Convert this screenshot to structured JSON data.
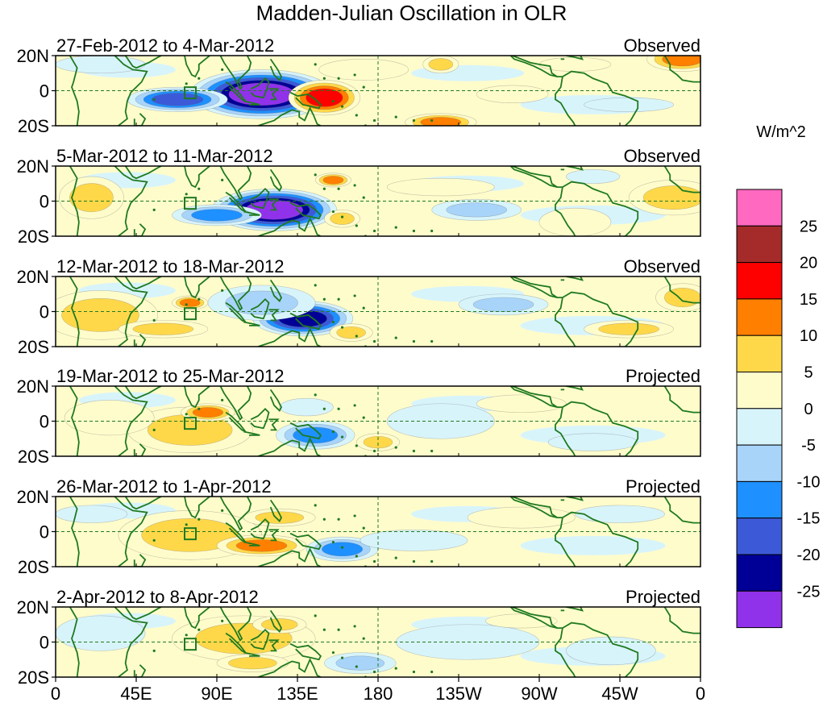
{
  "chart_data": {
    "type": "heatmap",
    "title": "Madden-Julian Oscillation in OLR",
    "units": "W/m^2",
    "lat_ticks": [
      "20N",
      "0",
      "20S"
    ],
    "lon_ticks": [
      "0",
      "45E",
      "90E",
      "135E",
      "180",
      "135W",
      "90W",
      "45W",
      "0"
    ],
    "lon_values": [
      0,
      45,
      90,
      135,
      180,
      225,
      270,
      315,
      360
    ],
    "lat_range": [
      -20,
      20
    ],
    "colorbar": {
      "labels": [
        "25",
        "20",
        "15",
        "10",
        "5",
        "0",
        "-5",
        "-10",
        "-15",
        "-20",
        "-25"
      ],
      "levels": [
        25,
        20,
        15,
        10,
        5,
        0,
        -5,
        -10,
        -15,
        -20,
        -25
      ],
      "colors": [
        "#ff69c0",
        "#a52a2a",
        "#ff0000",
        "#ff7f00",
        "#ffd84a",
        "#fffccc",
        "#d8f4fb",
        "#a8d4fa",
        "#1e90ff",
        "#3c5ad8",
        "#000096",
        "#9132eb"
      ]
    },
    "panels": [
      {
        "period": "27-Feb-2012 to 4-Mar-2012",
        "status": "Observed",
        "anomalies": [
          {
            "lon": 115,
            "lat": -2,
            "rlon": 40,
            "rlat": 14,
            "value": -30
          },
          {
            "lon": 68,
            "lat": -5,
            "rlon": 28,
            "rlat": 7,
            "value": -22
          },
          {
            "lon": 150,
            "lat": -4,
            "rlon": 20,
            "rlat": 10,
            "value": 18
          },
          {
            "lon": 172,
            "lat": 12,
            "rlon": 25,
            "rlat": 6,
            "value": 6
          },
          {
            "lon": 215,
            "lat": 15,
            "rlon": 10,
            "rlat": 5,
            "value": 9
          },
          {
            "lon": 255,
            "lat": -2,
            "rlon": 20,
            "rlat": 5,
            "value": 7
          },
          {
            "lon": 215,
            "lat": -18,
            "rlon": 20,
            "rlat": 5,
            "value": 17
          },
          {
            "lon": 350,
            "lat": 18,
            "rlon": 20,
            "rlat": 7,
            "value": 14
          },
          {
            "lon": 25,
            "lat": 15,
            "rlon": 25,
            "rlat": 5,
            "value": -6
          },
          {
            "lon": 290,
            "lat": 15,
            "rlon": 20,
            "rlat": 4,
            "value": 4
          },
          {
            "lon": 320,
            "lat": -8,
            "rlon": 25,
            "rlat": 4,
            "value": -5
          }
        ]
      },
      {
        "period": "5-Mar-2012 to 11-Mar-2012",
        "status": "Observed",
        "anomalies": [
          {
            "lon": 122,
            "lat": -5,
            "rlon": 35,
            "rlat": 12,
            "value": -28
          },
          {
            "lon": 90,
            "lat": -8,
            "rlon": 25,
            "rlat": 6,
            "value": -14
          },
          {
            "lon": 20,
            "lat": 2,
            "rlon": 18,
            "rlat": 12,
            "value": 8
          },
          {
            "lon": 155,
            "lat": 12,
            "rlon": 10,
            "rlat": 4,
            "value": 13
          },
          {
            "lon": 160,
            "lat": -10,
            "rlon": 10,
            "rlat": 5,
            "value": 9
          },
          {
            "lon": 235,
            "lat": -5,
            "rlon": 25,
            "rlat": 6,
            "value": -10
          },
          {
            "lon": 215,
            "lat": 8,
            "rlon": 30,
            "rlat": 5,
            "value": 5
          },
          {
            "lon": 345,
            "lat": 2,
            "rlon": 25,
            "rlat": 10,
            "value": 12
          },
          {
            "lon": 290,
            "lat": -12,
            "rlon": 20,
            "rlat": 8,
            "value": 7
          },
          {
            "lon": 300,
            "lat": 14,
            "rlon": 15,
            "rlat": 4,
            "value": -4
          }
        ]
      },
      {
        "period": "12-Mar-2012 to 18-Mar-2012",
        "status": "Observed",
        "anomalies": [
          {
            "lon": 138,
            "lat": -4,
            "rlon": 28,
            "rlat": 10,
            "value": -26
          },
          {
            "lon": 115,
            "lat": 5,
            "rlon": 30,
            "rlat": 10,
            "value": -8
          },
          {
            "lon": 25,
            "lat": -2,
            "rlon": 32,
            "rlat": 14,
            "value": 11
          },
          {
            "lon": 75,
            "lat": 5,
            "rlon": 10,
            "rlat": 4,
            "value": 15
          },
          {
            "lon": 60,
            "lat": -10,
            "rlon": 25,
            "rlat": 5,
            "value": 9
          },
          {
            "lon": 165,
            "lat": -12,
            "rlon": 12,
            "rlat": 5,
            "value": 11
          },
          {
            "lon": 250,
            "lat": 4,
            "rlon": 25,
            "rlat": 6,
            "value": -9
          },
          {
            "lon": 320,
            "lat": -10,
            "rlon": 25,
            "rlat": 5,
            "value": 8
          },
          {
            "lon": 350,
            "lat": 8,
            "rlon": 15,
            "rlat": 8,
            "value": 10
          }
        ]
      },
      {
        "period": "19-Mar-2012 to 25-Mar-2012",
        "status": "Projected",
        "anomalies": [
          {
            "lon": 75,
            "lat": -5,
            "rlon": 35,
            "rlat": 13,
            "value": 12
          },
          {
            "lon": 85,
            "lat": 5,
            "rlon": 15,
            "rlat": 5,
            "value": 17
          },
          {
            "lon": 30,
            "lat": 2,
            "rlon": 25,
            "rlat": 10,
            "value": 6
          },
          {
            "lon": 145,
            "lat": -8,
            "rlon": 22,
            "rlat": 8,
            "value": -17
          },
          {
            "lon": 140,
            "lat": 8,
            "rlon": 15,
            "rlat": 5,
            "value": -6
          },
          {
            "lon": 180,
            "lat": -12,
            "rlon": 12,
            "rlat": 5,
            "value": 11
          },
          {
            "lon": 215,
            "lat": 0,
            "rlon": 30,
            "rlat": 10,
            "value": -6
          },
          {
            "lon": 260,
            "lat": 10,
            "rlon": 25,
            "rlat": 5,
            "value": 4
          },
          {
            "lon": 300,
            "lat": -12,
            "rlon": 25,
            "rlat": 5,
            "value": -5
          }
        ]
      },
      {
        "period": "26-Mar-2012 to 1-Apr-2012",
        "status": "Projected",
        "anomalies": [
          {
            "lon": 75,
            "lat": -2,
            "rlon": 40,
            "rlat": 14,
            "value": 9
          },
          {
            "lon": 115,
            "lat": -8,
            "rlon": 25,
            "rlat": 6,
            "value": 13
          },
          {
            "lon": 125,
            "lat": 8,
            "rlon": 20,
            "rlat": 5,
            "value": 11
          },
          {
            "lon": 160,
            "lat": -10,
            "rlon": 20,
            "rlat": 7,
            "value": -14
          },
          {
            "lon": 200,
            "lat": -5,
            "rlon": 30,
            "rlat": 6,
            "value": -6
          },
          {
            "lon": 260,
            "lat": 8,
            "rlon": 30,
            "rlat": 6,
            "value": 4
          },
          {
            "lon": 315,
            "lat": 10,
            "rlon": 25,
            "rlat": 5,
            "value": -4
          },
          {
            "lon": 20,
            "lat": 10,
            "rlon": 20,
            "rlat": 5,
            "value": -5
          }
        ]
      },
      {
        "period": "2-Apr-2012 to 8-Apr-2012",
        "status": "Projected",
        "anomalies": [
          {
            "lon": 105,
            "lat": 2,
            "rlon": 40,
            "rlat": 13,
            "value": 8
          },
          {
            "lon": 125,
            "lat": 10,
            "rlon": 15,
            "rlat": 5,
            "value": 12
          },
          {
            "lon": 110,
            "lat": -12,
            "rlon": 20,
            "rlat": 5,
            "value": 11
          },
          {
            "lon": 170,
            "lat": -12,
            "rlon": 20,
            "rlat": 6,
            "value": -12
          },
          {
            "lon": 25,
            "lat": 5,
            "rlon": 25,
            "rlat": 10,
            "value": -5
          },
          {
            "lon": 230,
            "lat": 0,
            "rlon": 40,
            "rlat": 10,
            "value": -4
          },
          {
            "lon": 310,
            "lat": -5,
            "rlon": 25,
            "rlat": 8,
            "value": -5
          },
          {
            "lon": 260,
            "lat": 12,
            "rlon": 20,
            "rlat": 4,
            "value": 3
          }
        ]
      }
    ]
  }
}
